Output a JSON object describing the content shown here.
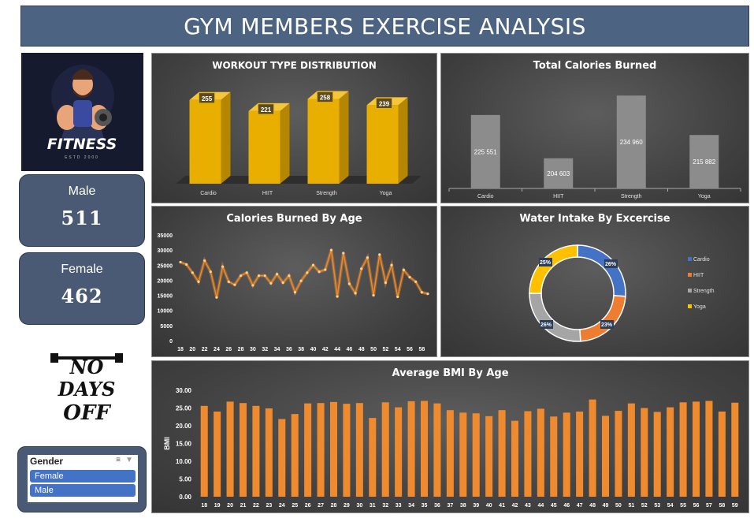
{
  "header": {
    "title": "GYM MEMBERS EXERCISE ANALYSIS"
  },
  "logo": {
    "brand": "FITNESS",
    "tagline": "ESTD 2000"
  },
  "cards": [
    {
      "label": "Male",
      "value": "511"
    },
    {
      "label": "Female",
      "value": "462"
    }
  ],
  "badge": {
    "text": "NO DAYS OFF"
  },
  "slicer": {
    "title": "Gender",
    "items": [
      "Female",
      "Male"
    ]
  },
  "chart_data": [
    {
      "type": "bar",
      "title": "WORKOUT TYPE DISTRIBUTION",
      "categories": [
        "Cardio",
        "HIIT",
        "Strength",
        "Yoga"
      ],
      "values": [
        255,
        221,
        258,
        239
      ],
      "color": "#e8ae00"
    },
    {
      "type": "bar",
      "title": "Total Calories Burned",
      "categories": [
        "Cardio",
        "HIIT",
        "Strength",
        "Yoga"
      ],
      "values": [
        225551,
        204603,
        234960,
        215882
      ],
      "value_labels": [
        "225 551",
        "204 603",
        "234 960",
        "215 882"
      ],
      "color": "#8c8c8c"
    },
    {
      "type": "line",
      "title": "Calories Burned By Age",
      "x": [
        18,
        19,
        20,
        21,
        22,
        23,
        24,
        25,
        26,
        27,
        28,
        29,
        30,
        31,
        32,
        33,
        34,
        35,
        36,
        37,
        38,
        39,
        40,
        41,
        42,
        43,
        44,
        45,
        46,
        47,
        48,
        49,
        50,
        51,
        52,
        53,
        54,
        55,
        56,
        57,
        58,
        59
      ],
      "x_tick_labels": [
        "18",
        "20",
        "22",
        "24",
        "26",
        "28",
        "30",
        "32",
        "34",
        "36",
        "38",
        "40",
        "42",
        "44",
        "46",
        "48",
        "50",
        "52",
        "54",
        "56",
        "58"
      ],
      "values": [
        26000,
        25200,
        22500,
        19500,
        26500,
        22800,
        14300,
        24500,
        19500,
        18500,
        21500,
        22500,
        18300,
        21500,
        21500,
        19000,
        22000,
        19200,
        21500,
        16000,
        19800,
        22500,
        25000,
        22800,
        23500,
        30000,
        14600,
        29000,
        18800,
        15700,
        23800,
        27500,
        15000,
        28500,
        19200,
        25000,
        14500,
        23400,
        21000,
        19500,
        16000,
        15500
      ],
      "ylim": [
        0,
        35000
      ],
      "y_ticks": [
        0,
        5000,
        10000,
        15000,
        20000,
        25000,
        30000,
        35000
      ],
      "color": "#f7891f"
    },
    {
      "type": "pie",
      "title": "Water Intake By Excercise",
      "categories": [
        "Cardio",
        "HIIT",
        "Strength",
        "Yoga"
      ],
      "values": [
        26,
        23,
        26,
        25
      ],
      "value_labels": [
        "26%",
        "23%",
        "26%",
        "25%"
      ],
      "colors": [
        "#4472c4",
        "#ed7d31",
        "#a5a5a5",
        "#ffc000"
      ],
      "legend": "right"
    },
    {
      "type": "bar",
      "title": "Average BMI By Age",
      "ylabel": "BMI",
      "categories": [
        "18",
        "19",
        "20",
        "21",
        "22",
        "23",
        "24",
        "25",
        "26",
        "27",
        "28",
        "29",
        "30",
        "31",
        "32",
        "33",
        "34",
        "35",
        "36",
        "37",
        "38",
        "39",
        "40",
        "41",
        "42",
        "43",
        "44",
        "45",
        "46",
        "47",
        "48",
        "49",
        "50",
        "51",
        "52",
        "53",
        "54",
        "55",
        "56",
        "57",
        "58",
        "59"
      ],
      "values": [
        25.6,
        24.0,
        26.8,
        26.4,
        25.6,
        24.9,
        21.9,
        23.3,
        26.3,
        26.4,
        26.7,
        26.2,
        26.4,
        22.2,
        26.6,
        25.2,
        26.9,
        27.0,
        26.3,
        24.4,
        23.7,
        23.5,
        22.7,
        24.4,
        21.4,
        24.1,
        24.8,
        22.6,
        23.7,
        24.0,
        27.4,
        22.8,
        24.2,
        26.3,
        25.0,
        23.9,
        25.2,
        26.6,
        26.8,
        27.0,
        24.0,
        26.5
      ],
      "ylim": [
        0,
        30
      ],
      "y_ticks": [
        "0.00",
        "5.00",
        "10.00",
        "15.00",
        "20.00",
        "25.00",
        "30.00"
      ],
      "color": "#f08a2e"
    }
  ]
}
